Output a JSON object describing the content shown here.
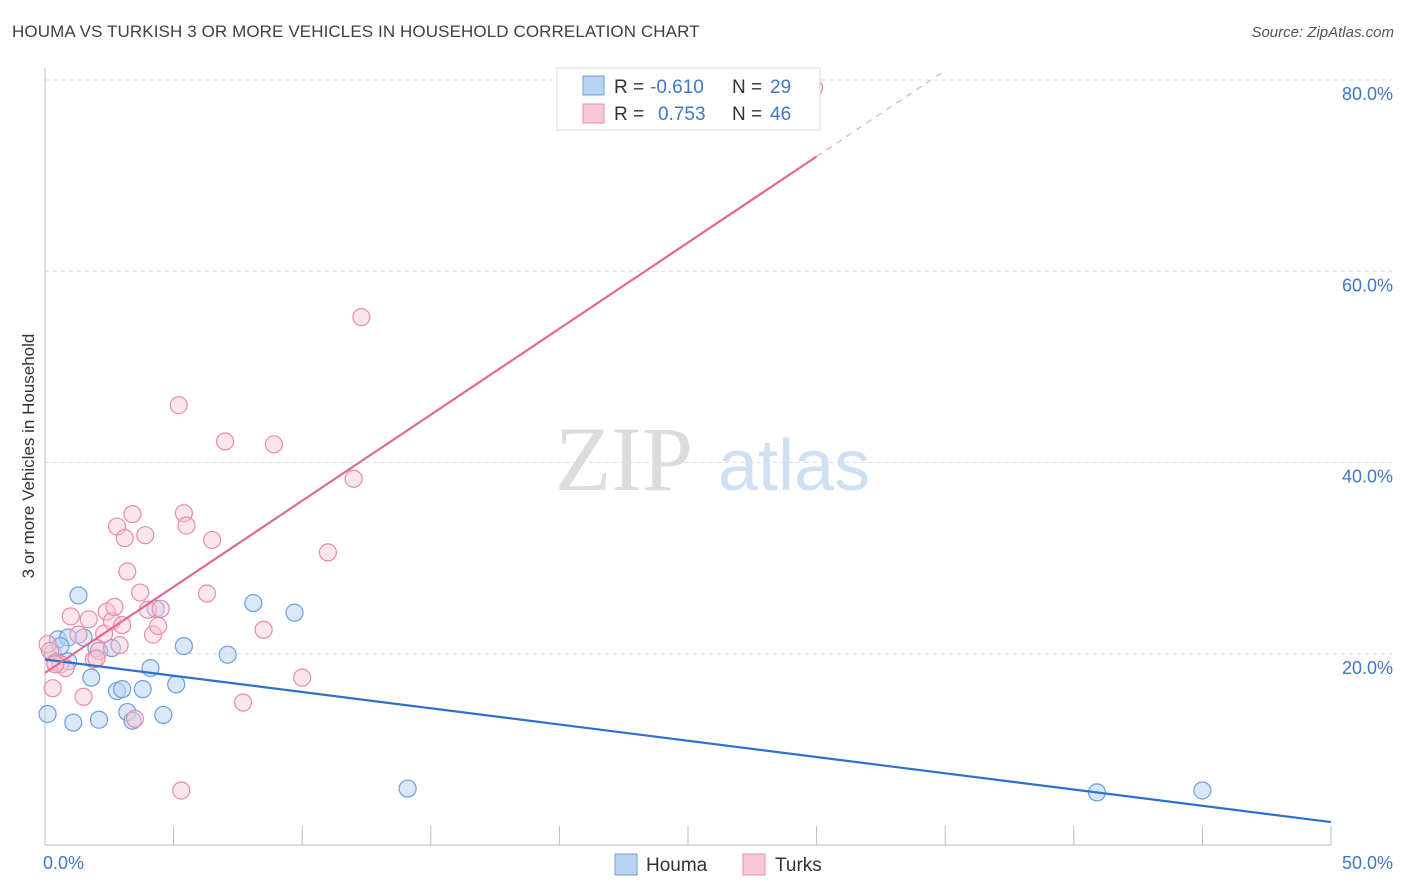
{
  "header": {
    "title": "HOUMA VS TURKISH 3 OR MORE VEHICLES IN HOUSEHOLD CORRELATION CHART",
    "source": "Source: ZipAtlas.com"
  },
  "watermark": {
    "zip": "ZIP",
    "atlas": "atlas"
  },
  "stats_legend": {
    "rows": [
      {
        "r_label": "R =",
        "r_value": "-0.610",
        "n_label": "N =",
        "n_value": "29"
      },
      {
        "r_label": "R =",
        "r_value": "0.753",
        "n_label": "N =",
        "n_value": "46"
      }
    ]
  },
  "bottom_legend": {
    "houma": "Houma",
    "turks": "Turks"
  },
  "colors": {
    "houma_fill": "#b9d3f2",
    "houma_stroke": "#6f9fdb",
    "houma_line": "#2f6fce",
    "turks_fill": "#f8c8d6",
    "turks_stroke": "#ea8ba8",
    "turks_line": "#e26a8f",
    "tick_text": "#3f78c4"
  },
  "chart_data": {
    "type": "scatter",
    "title": "HOUMA VS TURKISH 3 OR MORE VEHICLES IN HOUSEHOLD CORRELATION CHART",
    "xlabel": "",
    "ylabel": "3 or more Vehicles in Household",
    "xlim": [
      0,
      50
    ],
    "ylim": [
      0,
      80
    ],
    "x_tick_labels": [
      "0.0%",
      "50.0%"
    ],
    "y_tick_labels": [
      "20.0%",
      "40.0%",
      "60.0%",
      "80.0%"
    ],
    "y_ticks": [
      20,
      40,
      60,
      80
    ],
    "series": [
      {
        "name": "Houma",
        "r": -0.61,
        "n": 29,
        "points": [
          [
            0.1,
            13.7
          ],
          [
            0.3,
            20.1
          ],
          [
            0.5,
            21.5
          ],
          [
            0.9,
            21.7
          ],
          [
            1.1,
            12.8
          ],
          [
            1.3,
            26.1
          ],
          [
            1.5,
            21.7
          ],
          [
            1.8,
            17.5
          ],
          [
            2.0,
            20.6
          ],
          [
            2.1,
            13.1
          ],
          [
            2.6,
            20.6
          ],
          [
            2.8,
            16.1
          ],
          [
            3.0,
            16.3
          ],
          [
            3.2,
            13.9
          ],
          [
            3.4,
            13.0
          ],
          [
            3.8,
            16.3
          ],
          [
            4.1,
            18.5
          ],
          [
            4.3,
            24.7
          ],
          [
            4.6,
            13.6
          ],
          [
            5.1,
            16.8
          ],
          [
            5.4,
            20.8
          ],
          [
            7.1,
            19.9
          ],
          [
            8.1,
            25.3
          ],
          [
            9.7,
            24.3
          ],
          [
            14.1,
            5.9
          ],
          [
            40.9,
            5.5
          ],
          [
            45.0,
            5.7
          ],
          [
            0.6,
            20.8
          ],
          [
            0.9,
            19.2
          ]
        ],
        "trend": {
          "x": [
            0,
            50
          ],
          "y": [
            19.4,
            2.4
          ]
        }
      },
      {
        "name": "Turks",
        "r": 0.753,
        "n": 46,
        "points": [
          [
            0.1,
            21.0
          ],
          [
            0.2,
            20.3
          ],
          [
            0.3,
            16.4
          ],
          [
            0.4,
            19.1
          ],
          [
            0.6,
            18.9
          ],
          [
            0.8,
            18.5
          ],
          [
            1.0,
            23.9
          ],
          [
            1.3,
            22.0
          ],
          [
            1.5,
            15.5
          ],
          [
            1.7,
            23.6
          ],
          [
            1.9,
            19.4
          ],
          [
            2.1,
            20.3
          ],
          [
            2.3,
            22.1
          ],
          [
            2.4,
            24.4
          ],
          [
            2.6,
            23.4
          ],
          [
            2.7,
            24.9
          ],
          [
            2.8,
            33.3
          ],
          [
            2.9,
            20.9
          ],
          [
            3.0,
            23.0
          ],
          [
            3.1,
            32.1
          ],
          [
            3.2,
            28.6
          ],
          [
            3.4,
            34.6
          ],
          [
            3.5,
            13.2
          ],
          [
            3.7,
            26.4
          ],
          [
            3.9,
            32.4
          ],
          [
            4.0,
            24.6
          ],
          [
            4.2,
            22.0
          ],
          [
            4.4,
            22.9
          ],
          [
            5.2,
            46.0
          ],
          [
            5.3,
            5.7
          ],
          [
            5.4,
            34.7
          ],
          [
            5.5,
            33.4
          ],
          [
            6.3,
            26.3
          ],
          [
            6.5,
            31.9
          ],
          [
            7.0,
            42.2
          ],
          [
            7.7,
            14.9
          ],
          [
            8.5,
            22.5
          ],
          [
            8.9,
            41.9
          ],
          [
            10.0,
            17.5
          ],
          [
            11.0,
            30.6
          ],
          [
            12.0,
            38.3
          ],
          [
            12.3,
            55.2
          ],
          [
            29.9,
            79.2
          ],
          [
            0.4,
            18.9
          ],
          [
            2.0,
            19.5
          ],
          [
            4.5,
            24.7
          ]
        ],
        "trend": {
          "x": [
            0,
            35
          ],
          "y": [
            18.0,
            81.0
          ]
        }
      }
    ],
    "legend_position": "top-center",
    "grid": true
  }
}
